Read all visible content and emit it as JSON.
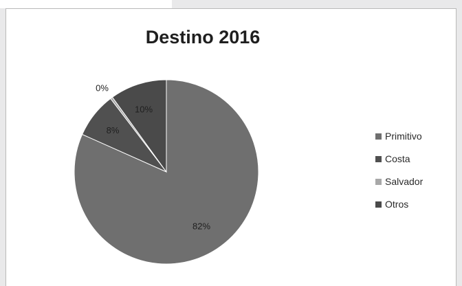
{
  "chart_data": {
    "type": "pie",
    "title": "Destino 2016",
    "categories": [
      "Primitivo",
      "Costa",
      "Salvador",
      "Otros"
    ],
    "values": [
      82,
      8,
      0.4,
      10
    ],
    "data_labels": [
      "82%",
      "8%",
      "0%",
      "10%"
    ],
    "colors": [
      "#6f6f6f",
      "#505050",
      "#a8a8a8",
      "#4a4a4a"
    ],
    "legend_position": "right"
  }
}
